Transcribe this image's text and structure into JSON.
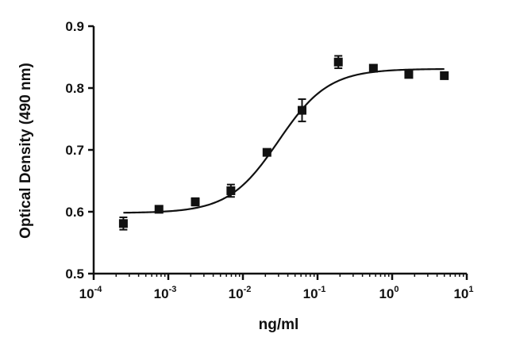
{
  "chart_data": {
    "type": "scatter",
    "xlabel": "ng/ml",
    "ylabel": "Optical Density (490 nm)",
    "x_scale": "log",
    "xlim": [
      0.0001,
      10
    ],
    "ylim": [
      0.5,
      0.9
    ],
    "x_ticks": [
      {
        "base": "10",
        "exp": "-4"
      },
      {
        "base": "10",
        "exp": "-3"
      },
      {
        "base": "10",
        "exp": "-2"
      },
      {
        "base": "10",
        "exp": "-1"
      },
      {
        "base": "10",
        "exp": "0"
      },
      {
        "base": "10",
        "exp": "1"
      }
    ],
    "y_ticks": [
      "0.5",
      "0.6",
      "0.7",
      "0.8",
      "0.9"
    ],
    "grid": false,
    "marker": "square",
    "series": [
      {
        "x": [
          0.00025,
          0.00075,
          0.0023,
          0.0069,
          0.021,
          0.062,
          0.19,
          0.56,
          1.67,
          5.0
        ],
        "values": [
          0.581,
          0.604,
          0.616,
          0.634,
          0.696,
          0.764,
          0.842,
          0.832,
          0.822,
          0.82
        ],
        "error": [
          0.01,
          0.004,
          0.006,
          0.01,
          0.004,
          0.018,
          0.01,
          0.004,
          0.003,
          0.003
        ]
      }
    ],
    "fit": {
      "model": "4PL",
      "bottom": 0.598,
      "top": 0.831,
      "ec50": 0.03,
      "hill": 1.3
    }
  }
}
